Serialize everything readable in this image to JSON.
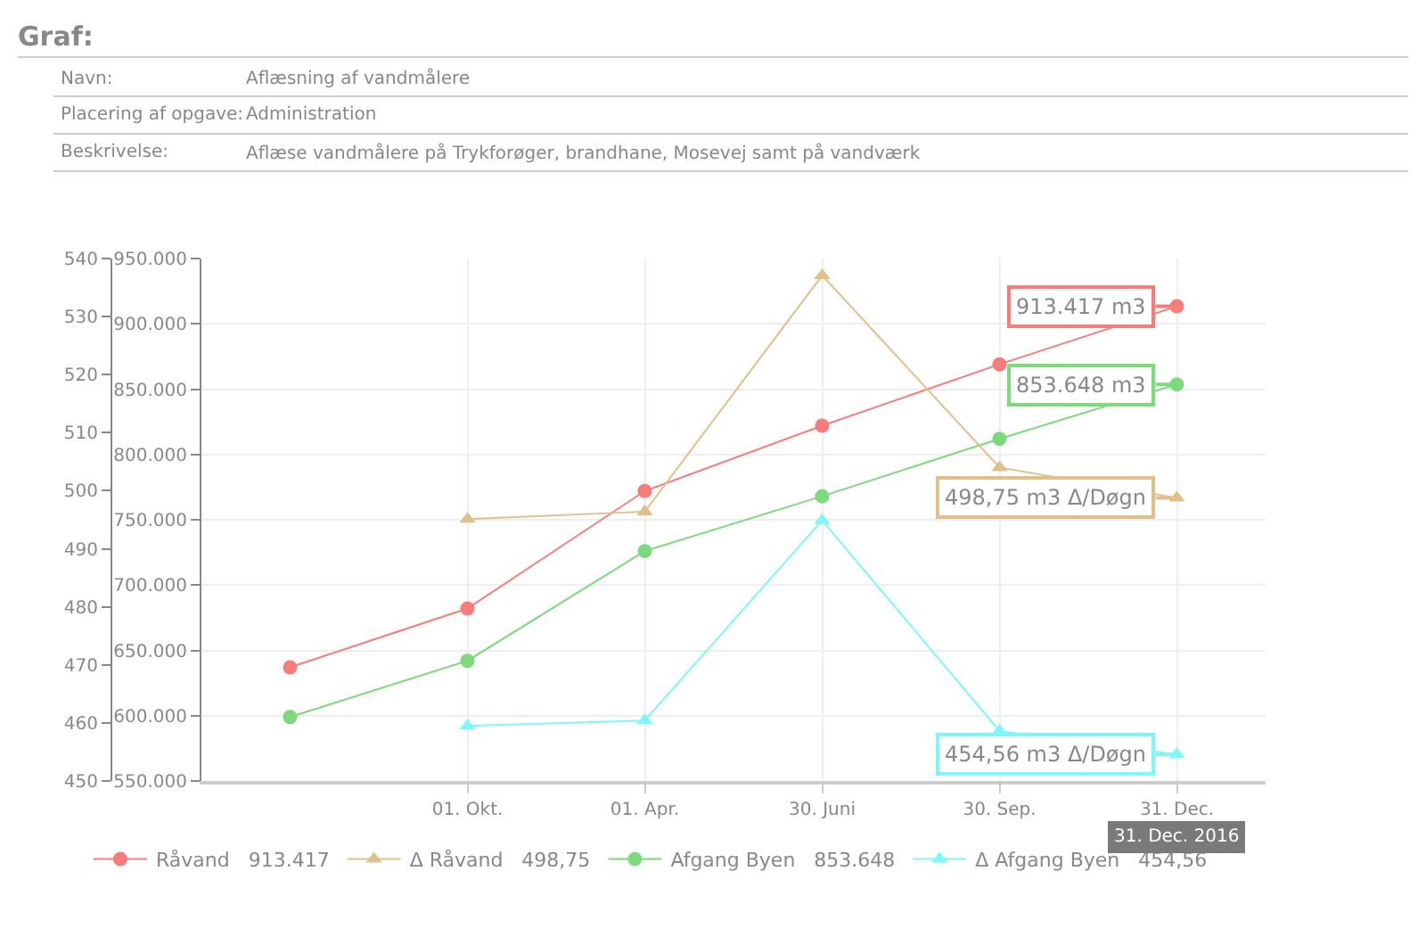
{
  "chart_data": {
    "type": "line",
    "title": "Graf:",
    "annotations": [
      "Navn:",
      "Aflæsning af vandmålere",
      "Placering af opgave:",
      "Administration",
      "Beskrivelse:",
      "Aflæse vandmålere på Trykforøger, brandhane, Mosevej samt på vandværk",
      "31. Dec. 2016"
    ],
    "categories": [
      null,
      "01. Okt.",
      "01. Apr.",
      "30. Juni",
      "30. Sep.",
      "31. Dec."
    ],
    "series": [
      {
        "name": "Råvand   913.417",
        "color": "#f77c7c",
        "marker": "circle",
        "values": [
          637000,
          682000,
          772000,
          822000,
          869000,
          913417
        ],
        "value_labels": [
          null,
          null,
          null,
          null,
          null,
          "913.417 m3"
        ]
      },
      {
        "name": "Δ Råvand   498,75",
        "color": "#e0c08a",
        "marker": "triangle",
        "axis": "y2",
        "values": [
          null,
          495.1,
          496.4,
          537.1,
          504.0,
          498.75
        ],
        "value_labels": [
          null,
          null,
          null,
          null,
          null,
          "498,75 m3 Δ/Døgn"
        ]
      },
      {
        "name": "Afgang Byen   853.648",
        "color": "#7cd97c",
        "marker": "circle",
        "values": [
          599000,
          642000,
          726000,
          768000,
          812000,
          853648
        ],
        "value_labels": [
          null,
          null,
          null,
          null,
          null,
          "853.648 m3"
        ]
      },
      {
        "name": "Δ Afgang Byen   454,56",
        "color": "#7ff7f7",
        "marker": "triangle",
        "axis": "y2",
        "values": [
          null,
          459.5,
          460.4,
          494.9,
          458.6,
          454.56
        ],
        "value_labels": [
          null,
          null,
          null,
          null,
          null,
          "454,56 m3 Δ/Døgn"
        ]
      }
    ],
    "ylim": [
      550000,
      950000
    ],
    "yticks": [
      {
        "value": 550000,
        "label": "550.000"
      },
      {
        "value": 600000,
        "label": "600.000"
      },
      {
        "value": 650000,
        "label": "650.000"
      },
      {
        "value": 700000,
        "label": "700.000"
      },
      {
        "value": 750000,
        "label": "750.000"
      },
      {
        "value": 800000,
        "label": "800.000"
      },
      {
        "value": 850000,
        "label": "850.000"
      },
      {
        "value": 900000,
        "label": "900.000"
      },
      {
        "value": 950000,
        "label": "950.000"
      }
    ],
    "y2lim": [
      450,
      540
    ],
    "y2ticks": [
      450,
      460,
      470,
      480,
      490,
      500,
      510,
      520,
      530,
      540
    ],
    "grid": true,
    "legend": "bottom",
    "line_style": "solid"
  }
}
